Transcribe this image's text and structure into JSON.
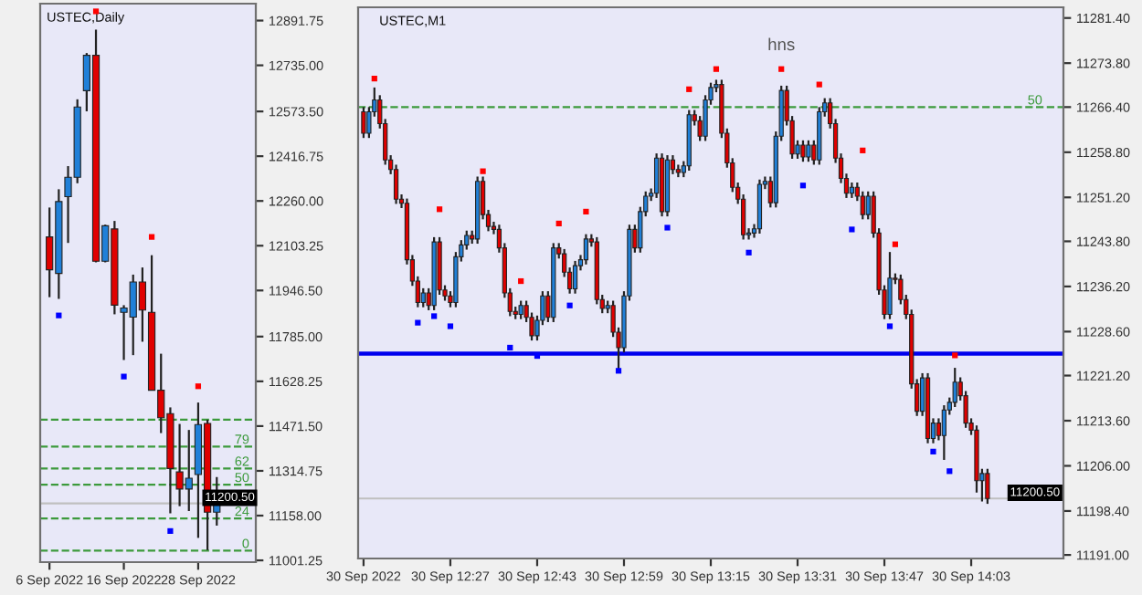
{
  "chart_data": [
    {
      "type": "candlestick",
      "title": "USTEC,Daily",
      "categories": [
        "6 Sep 2022",
        null,
        null,
        null,
        null,
        null,
        null,
        null,
        "16 Sep 2022",
        null,
        null,
        null,
        null,
        null,
        null,
        null,
        "28 Sep 2022",
        null,
        null
      ],
      "ohlc": [
        [
          12134,
          12237,
          11923,
          12019
        ],
        [
          12006,
          12301,
          11917,
          12258
        ],
        [
          12275,
          12382,
          12113,
          12343
        ],
        [
          12343,
          12616,
          12322,
          12589
        ],
        [
          12646,
          12778,
          12574,
          12770
        ],
        [
          12770,
          12860,
          12045,
          12049
        ],
        [
          12049,
          12177,
          12045,
          12173
        ],
        [
          12162,
          12190,
          11863,
          11895
        ],
        [
          11870,
          11895,
          11703,
          11885
        ],
        [
          11853,
          12002,
          11720,
          11976
        ],
        [
          11976,
          12027,
          11767,
          11878
        ],
        [
          11870,
          12070,
          11597,
          11597
        ],
        [
          11597,
          11725,
          11447,
          11501
        ],
        [
          11515,
          11537,
          11166,
          11323
        ],
        [
          11311,
          11479,
          11191,
          11251
        ],
        [
          11251,
          11458,
          11174,
          11289
        ],
        [
          11302,
          11554,
          11080,
          11477
        ],
        [
          11481,
          11494,
          11037,
          11170
        ],
        [
          11170,
          11293,
          11123,
          11200.5
        ]
      ],
      "series": [
        {
          "type": "scatter",
          "color": "#ff0000",
          "values": [
            null,
            null,
            null,
            null,
            null,
            12924,
            null,
            null,
            null,
            null,
            null,
            12134,
            null,
            null,
            null,
            null,
            11611,
            null,
            null
          ]
        },
        {
          "type": "scatter",
          "color": "#0000ff",
          "values": [
            null,
            11859,
            null,
            null,
            null,
            null,
            null,
            null,
            11645,
            null,
            null,
            null,
            null,
            11104,
            null,
            null,
            null,
            null,
            null
          ]
        }
      ],
      "ref_lines": [
        {
          "axis": "y",
          "value": 11494,
          "label": null,
          "color": "#3c9a3c",
          "line_style": "dashed"
        },
        {
          "axis": "y",
          "value": 11400,
          "label": null,
          "color": "#3c9a3c",
          "line_style": "dashed"
        },
        {
          "axis": "y",
          "value": 11323,
          "label": null,
          "color": "#3c9a3c",
          "line_style": "dashed"
        },
        {
          "axis": "y",
          "value": 11266,
          "label": null,
          "color": "#3c9a3c",
          "line_style": "dashed"
        },
        {
          "axis": "y",
          "value": 11148,
          "label": null,
          "color": "#3c9a3c",
          "line_style": "dashed"
        },
        {
          "axis": "y",
          "value": 11035,
          "label": null,
          "color": "#3c9a3c",
          "line_style": "dashed"
        },
        {
          "axis": "y",
          "value": 11200.5,
          "label": "11200.50",
          "color": "#c0c0c0",
          "line_style": "solid"
        }
      ],
      "annotations": [
        {
          "text": "79",
          "y": 11400
        },
        {
          "text": "62",
          "y": 11323
        },
        {
          "text": "50",
          "y": 11266
        },
        {
          "text": "24",
          "y": 11148
        },
        {
          "text": "0",
          "y": 11035
        }
      ],
      "ylim": [
        10995,
        12951
      ],
      "yticks": [
        {
          "value": 12891.75,
          "label": "12891.75"
        },
        {
          "value": 12735,
          "label": "12735.00"
        },
        {
          "value": 12573.5,
          "label": "12573.50"
        },
        {
          "value": 12416.75,
          "label": "12416.75"
        },
        {
          "value": 12260,
          "label": "12260.00"
        },
        {
          "value": 12103.25,
          "label": "12103.25"
        },
        {
          "value": 11946.5,
          "label": "11946.50"
        },
        {
          "value": 11785,
          "label": "11785.00"
        },
        {
          "value": 11628.25,
          "label": "11628.25"
        },
        {
          "value": 11471.5,
          "label": "11471.50"
        },
        {
          "value": 11314.75,
          "label": "11314.75"
        },
        {
          "value": 11158,
          "label": "11158.00"
        },
        {
          "value": 11001.25,
          "label": "11001.25"
        }
      ]
    },
    {
      "type": "candlestick",
      "title": "USTEC,M1",
      "x": [
        "2022-09-30T12:11",
        "2022-09-30T12:12",
        "2022-09-30T12:13",
        "2022-09-30T12:14",
        "2022-09-30T12:15",
        "2022-09-30T12:16",
        "2022-09-30T12:17",
        "2022-09-30T12:18",
        "2022-09-30T12:19",
        "2022-09-30T12:20",
        "2022-09-30T12:21",
        "2022-09-30T12:22",
        "2022-09-30T12:23",
        "2022-09-30T12:24",
        "2022-09-30T12:25",
        "2022-09-30T12:26",
        "2022-09-30T12:27",
        "2022-09-30T12:28",
        "2022-09-30T12:29",
        "2022-09-30T12:30",
        "2022-09-30T12:31",
        "2022-09-30T12:32",
        "2022-09-30T12:33",
        "2022-09-30T12:34",
        "2022-09-30T12:35",
        "2022-09-30T12:36",
        "2022-09-30T12:37",
        "2022-09-30T12:38",
        "2022-09-30T12:39",
        "2022-09-30T12:40",
        "2022-09-30T12:41",
        "2022-09-30T12:42",
        "2022-09-30T12:43",
        "2022-09-30T12:44",
        "2022-09-30T12:45",
        "2022-09-30T12:46",
        "2022-09-30T12:47",
        "2022-09-30T12:48",
        "2022-09-30T12:49",
        "2022-09-30T12:50",
        "2022-09-30T12:51",
        "2022-09-30T12:52",
        "2022-09-30T12:53",
        "2022-09-30T12:54",
        "2022-09-30T12:55",
        "2022-09-30T12:56",
        "2022-09-30T12:57",
        "2022-09-30T12:58",
        "2022-09-30T12:59",
        "2022-09-30T13:00",
        "2022-09-30T13:01",
        "2022-09-30T13:02",
        "2022-09-30T13:03",
        "2022-09-30T13:04",
        "2022-09-30T13:05",
        "2022-09-30T13:06",
        "2022-09-30T13:07",
        "2022-09-30T13:08",
        "2022-09-30T13:09",
        "2022-09-30T13:10",
        "2022-09-30T13:11",
        "2022-09-30T13:12",
        "2022-09-30T13:13",
        "2022-09-30T13:14",
        "2022-09-30T13:15",
        "2022-09-30T13:16",
        "2022-09-30T13:17",
        "2022-09-30T13:18",
        "2022-09-30T13:19",
        "2022-09-30T13:20",
        "2022-09-30T13:21",
        "2022-09-30T13:22",
        "2022-09-30T13:23",
        "2022-09-30T13:24",
        "2022-09-30T13:25",
        "2022-09-30T13:26",
        "2022-09-30T13:27",
        "2022-09-30T13:28",
        "2022-09-30T13:29",
        "2022-09-30T13:30",
        "2022-09-30T13:31",
        "2022-09-30T13:32",
        "2022-09-30T13:33",
        "2022-09-30T13:34",
        "2022-09-30T13:35",
        "2022-09-30T13:36",
        "2022-09-30T13:37",
        "2022-09-30T13:38",
        "2022-09-30T13:39",
        "2022-09-30T13:40",
        "2022-09-30T13:41",
        "2022-09-30T13:42",
        "2022-09-30T13:43",
        "2022-09-30T13:44",
        "2022-09-30T13:45",
        "2022-09-30T13:46",
        "2022-09-30T13:47",
        "2022-09-30T13:48",
        "2022-09-30T13:49",
        "2022-09-30T13:50",
        "2022-09-30T13:51",
        "2022-09-30T13:52",
        "2022-09-30T13:53",
        "2022-09-30T13:54",
        "2022-09-30T13:55",
        "2022-09-30T13:56",
        "2022-09-30T13:57",
        "2022-09-30T13:58",
        "2022-09-30T13:59",
        "2022-09-30T14:00",
        "2022-09-30T14:01",
        "2022-09-30T14:02",
        "2022-09-30T14:03",
        "2022-09-30T14:04",
        "2022-09-30T14:05",
        "2022-09-30T14:06"
      ],
      "xlim": [
        "2022-09-30T12:10",
        "2022-09-30T14:20"
      ],
      "xticks": [
        {
          "value": "2022-09-30T12:11",
          "label": "30 Sep 2022"
        },
        {
          "value": "2022-09-30T12:27",
          "label": "30 Sep 12:27"
        },
        {
          "value": "2022-09-30T12:43",
          "label": "30 Sep 12:43"
        },
        {
          "value": "2022-09-30T12:59",
          "label": "30 Sep 12:59"
        },
        {
          "value": "2022-09-30T13:15",
          "label": "30 Sep 13:15"
        },
        {
          "value": "2022-09-30T13:31",
          "label": "30 Sep 13:31"
        },
        {
          "value": "2022-09-30T13:47",
          "label": "30 Sep 13:47"
        },
        {
          "value": "2022-09-30T14:03",
          "label": "30 Sep 14:03"
        }
      ],
      "ohlc": [
        [
          11265.6,
          11266.4,
          11261.2,
          11262.0
        ],
        [
          11262.0,
          11266.4,
          11261.2,
          11265.6
        ],
        [
          11265.6,
          11269.7,
          11264.8,
          11267.6
        ],
        [
          11267.6,
          11268.4,
          11262.8,
          11263.6
        ],
        [
          11263.6,
          11264.4,
          11256.7,
          11257.5
        ],
        [
          11257.5,
          11258.3,
          11255.1,
          11255.9
        ],
        [
          11255.9,
          11256.7,
          11250.1,
          11250.9
        ],
        [
          11250.9,
          11251.7,
          11249.4,
          11250.2
        ],
        [
          11250.2,
          11251.0,
          11239.9,
          11240.7
        ],
        [
          11240.7,
          11241.5,
          11236.3,
          11237.1
        ],
        [
          11237.1,
          11237.9,
          11232.7,
          11233.5
        ],
        [
          11233.5,
          11235.9,
          11232.7,
          11235.1
        ],
        [
          11235.1,
          11235.9,
          11232.2,
          11233.0
        ],
        [
          11233.0,
          11244.5,
          11232.2,
          11243.7
        ],
        [
          11243.7,
          11244.5,
          11234.8,
          11235.6
        ],
        [
          11235.6,
          11236.4,
          11233.8,
          11234.6
        ],
        [
          11234.6,
          11235.4,
          11232.7,
          11233.5
        ],
        [
          11233.5,
          11242.0,
          11232.7,
          11241.2
        ],
        [
          11241.2,
          11244.0,
          11240.4,
          11243.2
        ],
        [
          11243.2,
          11245.6,
          11242.4,
          11244.8
        ],
        [
          11244.8,
          11245.6,
          11243.4,
          11244.2
        ],
        [
          11244.2,
          11254.7,
          11243.4,
          11253.9
        ],
        [
          11253.9,
          11254.7,
          11247.5,
          11248.3
        ],
        [
          11248.3,
          11249.1,
          11245.5,
          11246.3
        ],
        [
          11246.3,
          11247.1,
          11245.0,
          11245.8
        ],
        [
          11245.8,
          11246.6,
          11241.9,
          11242.7
        ],
        [
          11242.7,
          11243.5,
          11234.3,
          11235.1
        ],
        [
          11235.1,
          11235.9,
          11231.2,
          11232.0
        ],
        [
          11232.0,
          11232.8,
          11230.7,
          11231.5
        ],
        [
          11231.5,
          11233.8,
          11230.7,
          11233.0
        ],
        [
          11233.0,
          11233.8,
          11230.2,
          11231.0
        ],
        [
          11231.0,
          11231.8,
          11227.1,
          11227.9
        ],
        [
          11227.9,
          11231.3,
          11227.1,
          11230.5
        ],
        [
          11230.5,
          11235.4,
          11229.7,
          11234.6
        ],
        [
          11234.6,
          11235.4,
          11230.2,
          11231.0
        ],
        [
          11231.0,
          11243.5,
          11230.2,
          11242.7
        ],
        [
          11242.7,
          11243.5,
          11240.9,
          11241.7
        ],
        [
          11241.7,
          11242.5,
          11237.8,
          11238.6
        ],
        [
          11238.6,
          11239.4,
          11235.0,
          11235.8
        ],
        [
          11235.8,
          11240.5,
          11235.0,
          11239.7
        ],
        [
          11239.7,
          11241.5,
          11238.9,
          11240.7
        ],
        [
          11240.7,
          11245.0,
          11239.9,
          11244.2
        ],
        [
          11244.2,
          11245.0,
          11242.9,
          11243.7
        ],
        [
          11243.7,
          11244.5,
          11233.2,
          11234.0
        ],
        [
          11234.0,
          11234.8,
          11231.7,
          11232.5
        ],
        [
          11232.5,
          11233.8,
          11231.7,
          11233.0
        ],
        [
          11233.0,
          11233.8,
          11227.7,
          11228.5
        ],
        [
          11228.5,
          11229.3,
          11222.0,
          11225.9
        ],
        [
          11225.9,
          11235.4,
          11225.1,
          11234.6
        ],
        [
          11234.6,
          11246.6,
          11233.8,
          11245.8
        ],
        [
          11245.8,
          11246.6,
          11241.9,
          11242.7
        ],
        [
          11242.7,
          11249.6,
          11241.9,
          11248.8
        ],
        [
          11248.8,
          11252.2,
          11248.0,
          11251.4
        ],
        [
          11251.4,
          11252.7,
          11250.6,
          11251.9
        ],
        [
          11251.9,
          11258.6,
          11251.1,
          11257.8
        ],
        [
          11257.8,
          11258.6,
          11248.0,
          11248.8
        ],
        [
          11248.8,
          11258.3,
          11248.0,
          11257.5
        ],
        [
          11257.5,
          11258.3,
          11255.1,
          11255.9
        ],
        [
          11255.9,
          11256.7,
          11254.6,
          11255.4
        ],
        [
          11255.4,
          11257.3,
          11254.6,
          11256.5
        ],
        [
          11256.5,
          11265.9,
          11255.7,
          11265.1
        ],
        [
          11265.1,
          11265.9,
          11263.3,
          11264.1
        ],
        [
          11264.1,
          11264.9,
          11260.7,
          11261.5
        ],
        [
          11261.5,
          11268.4,
          11260.7,
          11267.6
        ],
        [
          11267.6,
          11270.5,
          11266.8,
          11269.7
        ],
        [
          11269.7,
          11271.0,
          11268.9,
          11270.2
        ],
        [
          11270.2,
          11271.0,
          11261.2,
          11262.0
        ],
        [
          11262.0,
          11262.8,
          11256.2,
          11257.0
        ],
        [
          11257.0,
          11257.8,
          11252.1,
          11252.9
        ],
        [
          11252.9,
          11253.7,
          11250.1,
          11250.9
        ],
        [
          11250.9,
          11251.7,
          11244.1,
          11244.9
        ],
        [
          11244.9,
          11246.0,
          11244.1,
          11245.2
        ],
        [
          11245.2,
          11246.7,
          11244.4,
          11245.9
        ],
        [
          11245.9,
          11254.2,
          11245.1,
          11253.4
        ],
        [
          11253.4,
          11254.7,
          11252.6,
          11253.9
        ],
        [
          11253.9,
          11254.7,
          11249.5,
          11250.3
        ],
        [
          11250.3,
          11262.3,
          11249.5,
          11261.5
        ],
        [
          11261.5,
          11270.0,
          11260.7,
          11269.2
        ],
        [
          11269.2,
          11270.0,
          11263.3,
          11264.1
        ],
        [
          11264.1,
          11264.9,
          11257.7,
          11258.5
        ],
        [
          11258.5,
          11260.8,
          11257.7,
          11260.0
        ],
        [
          11260.0,
          11260.8,
          11257.2,
          11258.0
        ],
        [
          11258.0,
          11260.8,
          11257.2,
          11260.0
        ],
        [
          11260.0,
          11260.8,
          11256.7,
          11257.5
        ],
        [
          11257.5,
          11266.4,
          11256.7,
          11265.6
        ],
        [
          11265.6,
          11267.9,
          11264.8,
          11267.1
        ],
        [
          11267.1,
          11267.9,
          11262.8,
          11263.6
        ],
        [
          11263.6,
          11264.4,
          11257.0,
          11257.8
        ],
        [
          11257.8,
          11258.6,
          11253.6,
          11254.4
        ],
        [
          11254.4,
          11255.2,
          11251.1,
          11251.9
        ],
        [
          11251.9,
          11253.7,
          11251.1,
          11252.9
        ],
        [
          11252.9,
          11253.7,
          11250.6,
          11251.4
        ],
        [
          11251.4,
          11252.2,
          11247.5,
          11248.3
        ],
        [
          11248.3,
          11252.2,
          11247.5,
          11251.4
        ],
        [
          11251.4,
          11252.2,
          11244.4,
          11245.2
        ],
        [
          11245.2,
          11246.0,
          11234.8,
          11235.6
        ],
        [
          11235.6,
          11236.4,
          11230.7,
          11231.5
        ],
        [
          11231.5,
          11242.0,
          11230.7,
          11237.6
        ],
        [
          11237.6,
          11238.4,
          11236.6,
          11237.4
        ],
        [
          11237.4,
          11238.2,
          11233.2,
          11234.0
        ],
        [
          11234.0,
          11234.8,
          11230.7,
          11231.5
        ],
        [
          11231.5,
          11232.3,
          11219.0,
          11219.8
        ],
        [
          11219.8,
          11220.6,
          11214.4,
          11215.2
        ],
        [
          11215.2,
          11221.6,
          11214.4,
          11220.8
        ],
        [
          11220.8,
          11221.6,
          11209.8,
          11210.6
        ],
        [
          11210.6,
          11214.0,
          11209.8,
          11213.2
        ],
        [
          11213.2,
          11214.0,
          11210.3,
          11211.1
        ],
        [
          11211.1,
          11216.2,
          11207.0,
          11215.4
        ],
        [
          11215.4,
          11217.5,
          11214.6,
          11216.7
        ],
        [
          11216.7,
          11222.5,
          11215.9,
          11220.1
        ],
        [
          11220.1,
          11220.9,
          11217.0,
          11217.8
        ],
        [
          11217.8,
          11218.6,
          11212.4,
          11213.2
        ],
        [
          11213.2,
          11214.0,
          11211.2,
          11212.0
        ],
        [
          11212.0,
          11212.8,
          11201.5,
          11203.5
        ],
        [
          11203.5,
          11205.5,
          11200.0,
          11204.7
        ],
        [
          11204.7,
          11205.5,
          11199.6,
          11200.5
        ]
      ],
      "series": [
        {
          "type": "scatter",
          "color": "#ff0000",
          "values": [
            null,
            null,
            11271.2,
            null,
            null,
            null,
            null,
            null,
            null,
            null,
            null,
            null,
            null,
            null,
            11249.2,
            null,
            null,
            null,
            null,
            null,
            null,
            null,
            11255.6,
            null,
            null,
            null,
            null,
            null,
            null,
            11237.1,
            null,
            null,
            null,
            null,
            null,
            null,
            11246.8,
            null,
            null,
            null,
            null,
            11248.8,
            null,
            null,
            null,
            null,
            null,
            null,
            null,
            null,
            null,
            null,
            null,
            null,
            null,
            null,
            null,
            null,
            null,
            null,
            11269.4,
            null,
            null,
            null,
            null,
            11272.8,
            null,
            null,
            null,
            null,
            null,
            null,
            null,
            null,
            null,
            null,
            null,
            11272.8,
            null,
            null,
            null,
            null,
            null,
            null,
            11270.2,
            null,
            null,
            null,
            null,
            null,
            null,
            null,
            11259.1,
            null,
            null,
            null,
            null,
            null,
            11243.3,
            null,
            null,
            null,
            null,
            null,
            null,
            null,
            null,
            null,
            null,
            11224.6,
            null,
            null,
            null,
            null,
            null,
            null
          ]
        },
        {
          "type": "scatter",
          "color": "#0000ff",
          "values": [
            null,
            null,
            null,
            null,
            null,
            null,
            null,
            null,
            null,
            null,
            11230.1,
            null,
            null,
            11231.2,
            null,
            null,
            11229.5,
            null,
            null,
            null,
            null,
            null,
            null,
            null,
            null,
            null,
            null,
            11225.9,
            null,
            null,
            null,
            null,
            11224.5,
            null,
            null,
            null,
            null,
            null,
            11233.0,
            null,
            null,
            null,
            null,
            null,
            null,
            null,
            null,
            11222.0,
            null,
            null,
            null,
            null,
            null,
            null,
            null,
            null,
            11246.1,
            null,
            null,
            null,
            null,
            null,
            null,
            null,
            null,
            null,
            null,
            null,
            null,
            null,
            null,
            11241.9,
            null,
            null,
            null,
            null,
            null,
            null,
            null,
            null,
            null,
            11253.2,
            null,
            null,
            null,
            null,
            null,
            null,
            null,
            null,
            11245.8,
            null,
            null,
            null,
            null,
            null,
            null,
            11229.5,
            null,
            null,
            null,
            null,
            null,
            null,
            null,
            11208.4,
            null,
            null,
            11205.1,
            null,
            null,
            null,
            null,
            null,
            null,
            null
          ]
        }
      ],
      "ref_lines": [
        {
          "axis": "y",
          "value": 11266.4,
          "label": null,
          "color": "#3c9a3c",
          "line_style": "dashed"
        },
        {
          "axis": "y",
          "value": 11224.9,
          "label": null,
          "color": "#0000ee",
          "line_style": "solid"
        },
        {
          "axis": "y",
          "value": 11200.5,
          "label": "11200.50",
          "color": "#c0c0c0",
          "line_style": "solid"
        }
      ],
      "annotations": [
        "hns",
        {
          "text": "50",
          "y": 11266.4
        }
      ],
      "ylim": [
        11190.4,
        11283.2
      ],
      "yticks": [
        {
          "value": 11281.4,
          "label": "11281.40"
        },
        {
          "value": 11273.8,
          "label": "11273.80"
        },
        {
          "value": 11266.4,
          "label": "11266.40"
        },
        {
          "value": 11258.8,
          "label": "11258.80"
        },
        {
          "value": 11251.2,
          "label": "11251.20"
        },
        {
          "value": 11243.8,
          "label": "11243.80"
        },
        {
          "value": 11236.2,
          "label": "11236.20"
        },
        {
          "value": 11228.6,
          "label": "11228.60"
        },
        {
          "value": 11221.2,
          "label": "11221.20"
        },
        {
          "value": 11213.6,
          "label": "11213.60"
        },
        {
          "value": 11206,
          "label": "11206.00"
        },
        {
          "value": 11198.4,
          "label": "11198.40"
        },
        {
          "value": 11191,
          "label": "11191.00"
        }
      ]
    }
  ]
}
